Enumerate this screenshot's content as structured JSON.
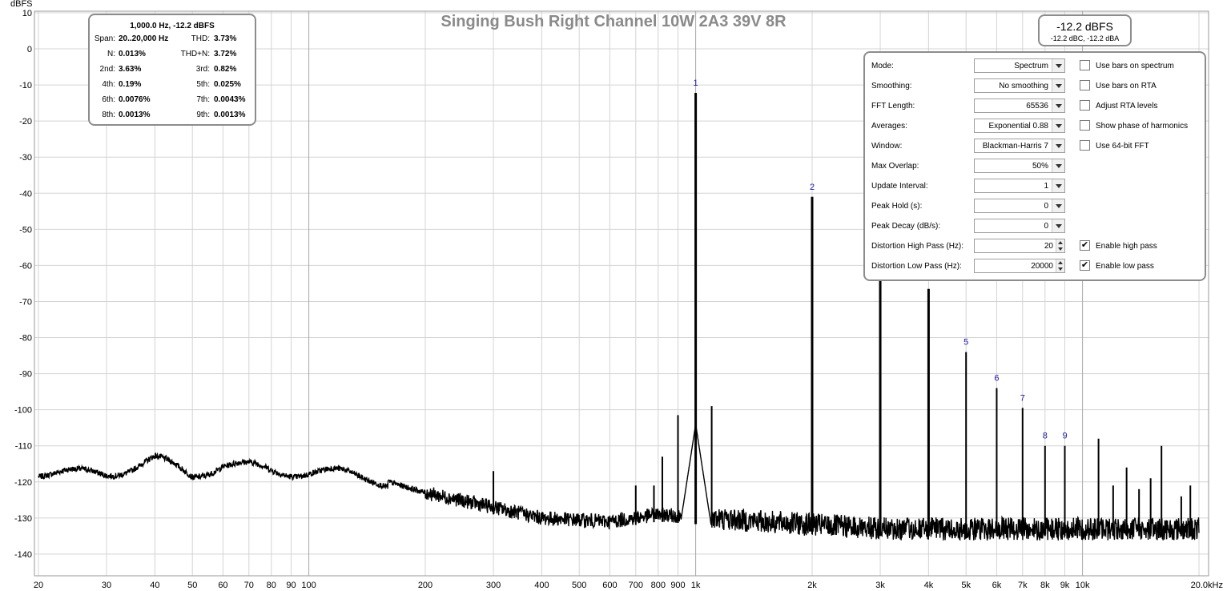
{
  "chart_data": {
    "type": "line",
    "title": "Singing Bush Right Channel 10W 2A3  39V 8R",
    "ylabel": "dBFS",
    "xlabel": "",
    "x_scale": "log",
    "xlim": [
      20,
      20000
    ],
    "ylim": [
      -145,
      10
    ],
    "grid": true,
    "y_ticks": [
      "10",
      "0",
      "-10",
      "-20",
      "-30",
      "-40",
      "-50",
      "-60",
      "-70",
      "-80",
      "-90",
      "-100",
      "-110",
      "-120",
      "-130",
      "-140"
    ],
    "y_tick_values": [
      10,
      0,
      -10,
      -20,
      -30,
      -40,
      -50,
      -60,
      -70,
      -80,
      -90,
      -100,
      -110,
      -120,
      -130,
      -140
    ],
    "x_ticks": [
      {
        "v": 20,
        "t": "20"
      },
      {
        "v": 30,
        "t": "30"
      },
      {
        "v": 40,
        "t": "40"
      },
      {
        "v": 50,
        "t": "50"
      },
      {
        "v": 60,
        "t": "60"
      },
      {
        "v": 70,
        "t": "70"
      },
      {
        "v": 80,
        "t": "80"
      },
      {
        "v": 90,
        "t": "90"
      },
      {
        "v": 100,
        "t": "100"
      },
      {
        "v": 200,
        "t": "200"
      },
      {
        "v": 300,
        "t": "300"
      },
      {
        "v": 400,
        "t": "400"
      },
      {
        "v": 500,
        "t": "500"
      },
      {
        "v": 600,
        "t": "600"
      },
      {
        "v": 700,
        "t": "700"
      },
      {
        "v": 800,
        "t": "800"
      },
      {
        "v": 900,
        "t": "900"
      },
      {
        "v": 1000,
        "t": "1k"
      },
      {
        "v": 2000,
        "t": "2k"
      },
      {
        "v": 3000,
        "t": "3k"
      },
      {
        "v": 4000,
        "t": "4k"
      },
      {
        "v": 5000,
        "t": "5k"
      },
      {
        "v": 6000,
        "t": "6k"
      },
      {
        "v": 7000,
        "t": "7k"
      },
      {
        "v": 8000,
        "t": "8k"
      },
      {
        "v": 9000,
        "t": "9k"
      },
      {
        "v": 10000,
        "t": "10k"
      },
      {
        "v": 20000,
        "t": "20.0kHz"
      }
    ],
    "harmonic_labels": [
      {
        "label": "1",
        "x": 1000,
        "y": -12.2
      },
      {
        "label": "2",
        "x": 2000,
        "y": -41
      },
      {
        "label": "5",
        "x": 5000,
        "y": -84
      },
      {
        "label": "6",
        "x": 6000,
        "y": -94
      },
      {
        "label": "7",
        "x": 7000,
        "y": -99.5
      },
      {
        "label": "8",
        "x": 8000,
        "y": -110
      },
      {
        "label": "9",
        "x": 9000,
        "y": -110
      }
    ],
    "peaks": [
      {
        "x": 300,
        "y": -117
      },
      {
        "x": 700,
        "y": -121
      },
      {
        "x": 780,
        "y": -121
      },
      {
        "x": 820,
        "y": -113
      },
      {
        "x": 900,
        "y": -101.5
      },
      {
        "x": 1000,
        "y": -12.2
      },
      {
        "x": 1100,
        "y": -99
      },
      {
        "x": 2000,
        "y": -41
      },
      {
        "x": 3000,
        "y": -62
      },
      {
        "x": 4000,
        "y": -66.5
      },
      {
        "x": 5000,
        "y": -84
      },
      {
        "x": 6000,
        "y": -94
      },
      {
        "x": 7000,
        "y": -99.5
      },
      {
        "x": 8000,
        "y": -110
      },
      {
        "x": 9000,
        "y": -110
      },
      {
        "x": 11000,
        "y": -108
      },
      {
        "x": 12000,
        "y": -121
      },
      {
        "x": 13000,
        "y": -116
      },
      {
        "x": 14000,
        "y": -122
      },
      {
        "x": 15000,
        "y": -119
      },
      {
        "x": 16000,
        "y": -110
      },
      {
        "x": 18000,
        "y": -124
      },
      {
        "x": 19000,
        "y": -121
      }
    ],
    "noise_floor": [
      {
        "x": 20,
        "y": -117
      },
      {
        "x": 25,
        "y": -118
      },
      {
        "x": 30,
        "y": -117.5
      },
      {
        "x": 40,
        "y": -114
      },
      {
        "x": 50,
        "y": -118
      },
      {
        "x": 60,
        "y": -115
      },
      {
        "x": 80,
        "y": -117
      },
      {
        "x": 100,
        "y": -117
      },
      {
        "x": 150,
        "y": -119
      },
      {
        "x": 200,
        "y": -123
      },
      {
        "x": 300,
        "y": -127
      },
      {
        "x": 400,
        "y": -130
      },
      {
        "x": 600,
        "y": -131
      },
      {
        "x": 800,
        "y": -129
      },
      {
        "x": 1500,
        "y": -131
      },
      {
        "x": 3000,
        "y": -133
      },
      {
        "x": 10000,
        "y": -133
      },
      {
        "x": 20000,
        "y": -133
      }
    ]
  },
  "stats": {
    "header": "1,000.0 Hz, -12.2 dBFS",
    "rows": [
      {
        "l1": "Span:",
        "v1": "20..20,000 Hz",
        "l2": "THD:",
        "v2": "3.73%"
      },
      {
        "l1": "N:",
        "v1": "0.013%",
        "l2": "THD+N:",
        "v2": "3.72%"
      },
      {
        "l1": "2nd:",
        "v1": "3.63%",
        "l2": "3rd:",
        "v2": "0.82%"
      },
      {
        "l1": "4th:",
        "v1": "0.19%",
        "l2": "5th:",
        "v2": "0.025%"
      },
      {
        "l1": "6th:",
        "v1": "0.0076%",
        "l2": "7th:",
        "v2": "0.0043%"
      },
      {
        "l1": "8th:",
        "v1": "0.0013%",
        "l2": "9th:",
        "v2": "0.0013%"
      }
    ]
  },
  "level": {
    "main": "-12.2 dBFS",
    "sub": "-12.2 dBC, -12.2 dBA"
  },
  "settings": {
    "rows": [
      {
        "label": "Mode:",
        "value": "Spectrum",
        "kind": "combo"
      },
      {
        "label": "Smoothing:",
        "value": "No  smoothing",
        "kind": "combo"
      },
      {
        "label": "FFT Length:",
        "value": "65536",
        "kind": "combo"
      },
      {
        "label": "Averages:",
        "value": "Exponential 0.88",
        "kind": "combo"
      },
      {
        "label": "Window:",
        "value": "Blackman-Harris 7",
        "kind": "combo"
      },
      {
        "label": "Max Overlap:",
        "value": "50%",
        "kind": "combo"
      },
      {
        "label": "Update Interval:",
        "value": "1",
        "kind": "combo"
      },
      {
        "label": "Peak Hold (s):",
        "value": "0",
        "kind": "combo"
      },
      {
        "label": "Peak Decay (dB/s):",
        "value": "0",
        "kind": "combo"
      },
      {
        "label": "Distortion High Pass (Hz):",
        "value": "20",
        "kind": "spin"
      },
      {
        "label": "Distortion Low Pass (Hz):",
        "value": "20000",
        "kind": "spin"
      }
    ],
    "checkboxes": [
      {
        "label": "Use bars on spectrum",
        "checked": false
      },
      {
        "label": "Use bars on RTA",
        "checked": false
      },
      {
        "label": "Adjust RTA levels",
        "checked": false
      },
      {
        "label": "Show phase of harmonics",
        "checked": false
      },
      {
        "label": "Use 64-bit FFT",
        "checked": false
      },
      null,
      null,
      null,
      null,
      {
        "label": "Enable high pass",
        "checked": true
      },
      {
        "label": "Enable low pass",
        "checked": true
      }
    ],
    "check_mark": "✔"
  }
}
